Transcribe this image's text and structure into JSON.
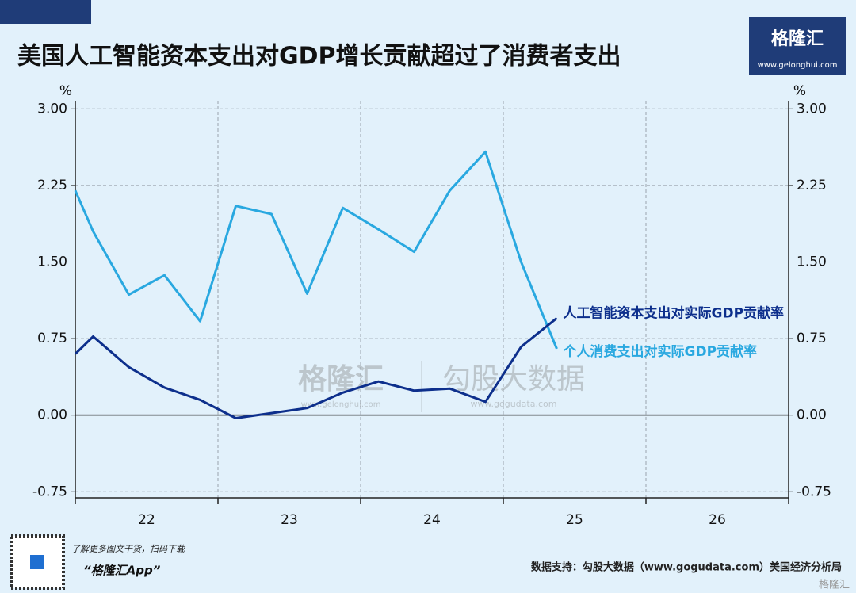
{
  "header": {
    "title": "美国人工智能资本支出对GDP增长贡献超过了消费者支出",
    "logo": "格隆汇",
    "logo_url": "www.gelonghui.com"
  },
  "chart_data": {
    "type": "line",
    "y_label": "%",
    "x": [
      21.5,
      21.625,
      21.875,
      22.125,
      22.375,
      22.625,
      22.875,
      23.125,
      23.375,
      23.625,
      23.875,
      24.125,
      24.375,
      24.625,
      24.875
    ],
    "series": [
      {
        "name": "个人消费支出对实际GDP贡献率",
        "color": "#29a8e0",
        "values": [
          2.2,
          1.8,
          1.18,
          1.37,
          0.92,
          2.05,
          1.97,
          1.19,
          2.03,
          1.82,
          1.6,
          2.2,
          2.58,
          1.5,
          0.65
        ]
      },
      {
        "name": "人工智能资本支出对实际GDP贡献率",
        "color": "#0d2f8c",
        "values": [
          0.6,
          0.77,
          0.47,
          0.27,
          0.15,
          -0.03,
          0.02,
          0.07,
          0.22,
          0.33,
          0.24,
          0.26,
          0.13,
          0.67,
          0.95
        ]
      }
    ],
    "xlim": [
      21.5,
      26.5
    ],
    "xticks": [
      22,
      23,
      24,
      25,
      26
    ],
    "ylim": [
      -0.81,
      3.08
    ],
    "yticks": [
      {
        "value": -0.75,
        "label": "-0.75"
      },
      {
        "value": 0,
        "label": "0.00"
      },
      {
        "value": 0.75,
        "label": "0.75"
      },
      {
        "value": 1.5,
        "label": "1.50"
      },
      {
        "value": 2.25,
        "label": "2.25"
      },
      {
        "value": 3,
        "label": "3.00"
      }
    ],
    "grid": true
  },
  "watermark": {
    "left": "格隆汇",
    "left_url": "www.gelonghui.com",
    "right": "勾股大数据",
    "right_url": "www.gogudata.com"
  },
  "footer": {
    "promo": "了解更多图文干货，扫码下载",
    "app": "“格隆汇App”",
    "source": "数据支持：勾股大数据（www.gogudata.com）美国经济分析局",
    "corner": "格隆汇"
  }
}
